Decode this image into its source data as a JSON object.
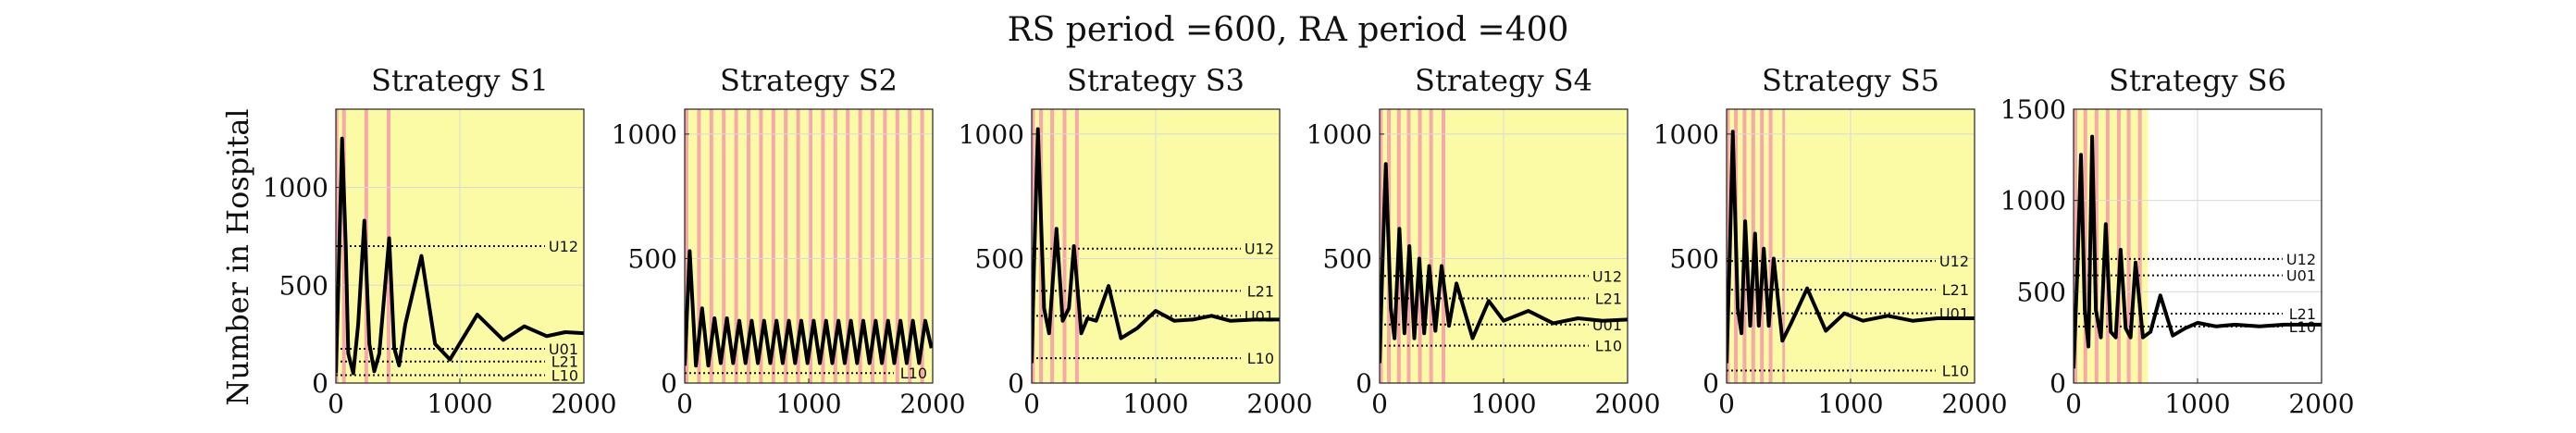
{
  "figure": {
    "title": "RS period =600, RA period =400",
    "ylabel": "Number in Hospital"
  },
  "colors": {
    "restricted_band": "#f7a9a9",
    "relaxed_background": "#fbfba6",
    "curve": "#000000",
    "grid": "#d9d9d9"
  },
  "chart_data": [
    {
      "type": "line",
      "title": "Strategy S1",
      "xlim": [
        0,
        2000
      ],
      "ylim": [
        0,
        1400
      ],
      "xticks": [
        "0",
        "1000",
        "2000"
      ],
      "xtick_values": [
        0,
        1000,
        2000
      ],
      "yticks": [
        "0",
        "500",
        "1000"
      ],
      "ytick_values": [
        0,
        500,
        1000
      ],
      "bands": [
        [
          0,
          20
        ],
        [
          50,
          80
        ],
        [
          230,
          260
        ],
        [
          410,
          440
        ]
      ],
      "shade_end": 2000,
      "thresholds": [
        {
          "name": "U12",
          "value": 700
        },
        {
          "name": "U01",
          "value": 175
        },
        {
          "name": "L21",
          "value": 110
        },
        {
          "name": "L10",
          "value": 40
        }
      ],
      "series": [
        {
          "x": [
            0,
            20,
            50,
            80,
            100,
            140,
            180,
            230,
            270,
            310,
            350,
            430,
            470,
            510,
            560,
            690,
            800,
            920,
            1140,
            1350,
            1520,
            1700,
            1850,
            2000
          ],
          "y": [
            50,
            500,
            1250,
            700,
            150,
            50,
            300,
            830,
            200,
            60,
            150,
            740,
            180,
            90,
            300,
            650,
            200,
            120,
            350,
            220,
            290,
            240,
            260,
            255
          ]
        }
      ]
    },
    {
      "type": "line",
      "title": "Strategy S2",
      "xlim": [
        0,
        2000
      ],
      "ylim": [
        0,
        1100
      ],
      "xticks": [
        "0",
        "1000",
        "2000"
      ],
      "xtick_values": [
        0,
        1000,
        2000
      ],
      "yticks": [
        "0",
        "500",
        "1000"
      ],
      "ytick_values": [
        0,
        500,
        1000
      ],
      "bands": [
        [
          0,
          30
        ],
        [
          100,
          130
        ],
        [
          200,
          230
        ],
        [
          300,
          330
        ],
        [
          400,
          430
        ],
        [
          500,
          530
        ],
        [
          600,
          630
        ],
        [
          700,
          730
        ],
        [
          800,
          830
        ],
        [
          900,
          930
        ],
        [
          1000,
          1030
        ],
        [
          1100,
          1130
        ],
        [
          1200,
          1230
        ],
        [
          1300,
          1330
        ],
        [
          1400,
          1430
        ],
        [
          1500,
          1530
        ],
        [
          1600,
          1630
        ],
        [
          1700,
          1730
        ],
        [
          1800,
          1830
        ],
        [
          1900,
          1930
        ]
      ],
      "shade_end": 2000,
      "thresholds": [
        {
          "name": "L10",
          "value": 40
        }
      ],
      "series": [
        {
          "x": [
            0,
            40,
            90,
            140,
            190,
            240,
            290,
            340,
            390,
            440,
            490,
            540,
            590,
            640,
            690,
            740,
            790,
            840,
            890,
            940,
            990,
            1040,
            1090,
            1140,
            1190,
            1240,
            1290,
            1340,
            1390,
            1440,
            1490,
            1540,
            1590,
            1640,
            1690,
            1740,
            1790,
            1840,
            1890,
            1940,
            1990
          ],
          "y": [
            70,
            530,
            70,
            300,
            70,
            260,
            80,
            260,
            80,
            250,
            80,
            250,
            80,
            250,
            80,
            250,
            80,
            250,
            80,
            250,
            80,
            250,
            80,
            250,
            80,
            250,
            80,
            250,
            80,
            250,
            80,
            250,
            80,
            250,
            80,
            250,
            80,
            250,
            80,
            250,
            140
          ]
        }
      ]
    },
    {
      "type": "line",
      "title": "Strategy S3",
      "xlim": [
        0,
        2000
      ],
      "ylim": [
        0,
        1100
      ],
      "xticks": [
        "0",
        "1000",
        "2000"
      ],
      "xtick_values": [
        0,
        1000,
        2000
      ],
      "yticks": [
        "0",
        "500",
        "1000"
      ],
      "ytick_values": [
        0,
        500,
        1000
      ],
      "bands": [
        [
          0,
          25
        ],
        [
          60,
          90
        ],
        [
          150,
          180
        ],
        [
          250,
          280
        ],
        [
          350,
          380
        ]
      ],
      "shade_end": 2000,
      "thresholds": [
        {
          "name": "U12",
          "value": 540
        },
        {
          "name": "L21",
          "value": 370
        },
        {
          "name": "U01",
          "value": 270
        },
        {
          "name": "L10",
          "value": 100
        }
      ],
      "series": [
        {
          "x": [
            0,
            20,
            50,
            100,
            140,
            200,
            250,
            300,
            340,
            400,
            450,
            520,
            620,
            720,
            850,
            1000,
            1150,
            1300,
            1450,
            1600,
            1800,
            2000
          ],
          "y": [
            80,
            500,
            1020,
            300,
            200,
            620,
            250,
            300,
            550,
            200,
            260,
            250,
            390,
            180,
            220,
            290,
            250,
            255,
            270,
            250,
            255,
            255
          ]
        }
      ]
    },
    {
      "type": "line",
      "title": "Strategy S4",
      "xlim": [
        0,
        2000
      ],
      "ylim": [
        0,
        1100
      ],
      "xticks": [
        "0",
        "1000",
        "2000"
      ],
      "xtick_values": [
        0,
        1000,
        2000
      ],
      "yticks": [
        "0",
        "500",
        "1000"
      ],
      "ytick_values": [
        0,
        500,
        1000
      ],
      "bands": [
        [
          0,
          25
        ],
        [
          60,
          90
        ],
        [
          140,
          170
        ],
        [
          220,
          250
        ],
        [
          310,
          340
        ],
        [
          400,
          430
        ],
        [
          500,
          530
        ]
      ],
      "shade_end": 2000,
      "thresholds": [
        {
          "name": "U12",
          "value": 430
        },
        {
          "name": "L21",
          "value": 340
        },
        {
          "name": "U01",
          "value": 235
        },
        {
          "name": "L10",
          "value": 150
        }
      ],
      "series": [
        {
          "x": [
            0,
            25,
            50,
            90,
            120,
            160,
            200,
            240,
            280,
            320,
            360,
            400,
            450,
            500,
            560,
            620,
            750,
            880,
            1000,
            1200,
            1400,
            1600,
            1800,
            2000
          ],
          "y": [
            80,
            500,
            880,
            300,
            180,
            620,
            200,
            550,
            180,
            500,
            200,
            470,
            210,
            470,
            230,
            400,
            180,
            330,
            250,
            290,
            240,
            260,
            250,
            255
          ]
        }
      ]
    },
    {
      "type": "line",
      "title": "Strategy S5",
      "xlim": [
        0,
        2000
      ],
      "ylim": [
        0,
        1100
      ],
      "xticks": [
        "0",
        "1000",
        "2000"
      ],
      "xtick_values": [
        0,
        1000,
        2000
      ],
      "yticks": [
        "0",
        "500",
        "1000"
      ],
      "ytick_values": [
        0,
        500,
        1000
      ],
      "bands": [
        [
          0,
          25
        ],
        [
          60,
          90
        ],
        [
          130,
          160
        ],
        [
          200,
          230
        ],
        [
          270,
          300
        ],
        [
          340,
          370
        ],
        [
          450,
          470
        ]
      ],
      "shade_end": 2000,
      "thresholds": [
        {
          "name": "U12",
          "value": 490
        },
        {
          "name": "L21",
          "value": 375
        },
        {
          "name": "U01",
          "value": 280
        },
        {
          "name": "L10",
          "value": 50
        }
      ],
      "series": [
        {
          "x": [
            0,
            25,
            50,
            90,
            120,
            150,
            190,
            230,
            260,
            300,
            340,
            380,
            450,
            520,
            650,
            800,
            950,
            1100,
            1300,
            1500,
            1700,
            2000
          ],
          "y": [
            80,
            500,
            1010,
            300,
            200,
            650,
            230,
            600,
            230,
            540,
            230,
            500,
            170,
            240,
            380,
            210,
            280,
            250,
            270,
            250,
            260,
            260
          ]
        }
      ]
    },
    {
      "type": "line",
      "title": "Strategy S6",
      "xlim": [
        0,
        2000
      ],
      "ylim": [
        0,
        1500
      ],
      "xticks": [
        "0",
        "1000",
        "2000"
      ],
      "xtick_values": [
        0,
        1000,
        2000
      ],
      "yticks": [
        "0",
        "500",
        "1000",
        "1500"
      ],
      "ytick_values": [
        0,
        500,
        1000,
        1500
      ],
      "bands": [
        [
          0,
          30
        ],
        [
          80,
          110
        ],
        [
          170,
          200
        ],
        [
          260,
          290
        ],
        [
          350,
          380
        ],
        [
          430,
          460
        ],
        [
          520,
          550
        ]
      ],
      "shade_end": 600,
      "thresholds": [
        {
          "name": "U12",
          "value": 680
        },
        {
          "name": "U01",
          "value": 590
        },
        {
          "name": "L21",
          "value": 380
        },
        {
          "name": "L10",
          "value": 310
        }
      ],
      "series": [
        {
          "x": [
            0,
            30,
            60,
            90,
            120,
            150,
            180,
            220,
            260,
            300,
            340,
            380,
            420,
            460,
            500,
            560,
            620,
            700,
            800,
            900,
            1000,
            1150,
            1300,
            1500,
            1700,
            2000
          ],
          "y": [
            80,
            600,
            1250,
            400,
            200,
            1350,
            400,
            250,
            870,
            280,
            250,
            730,
            300,
            250,
            660,
            250,
            280,
            480,
            260,
            300,
            330,
            310,
            320,
            310,
            320,
            320
          ]
        }
      ]
    }
  ]
}
